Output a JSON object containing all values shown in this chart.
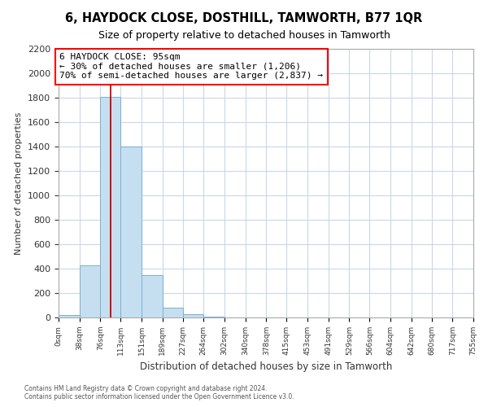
{
  "title": "6, HAYDOCK CLOSE, DOSTHILL, TAMWORTH, B77 1QR",
  "subtitle": "Size of property relative to detached houses in Tamworth",
  "xlabel": "Distribution of detached houses by size in Tamworth",
  "ylabel": "Number of detached properties",
  "bar_edges": [
    0,
    38,
    76,
    113,
    151,
    189,
    227,
    264,
    302,
    340,
    378,
    415,
    453,
    491,
    529,
    566,
    604,
    642,
    680,
    717,
    755
  ],
  "bar_heights": [
    20,
    430,
    1810,
    1400,
    350,
    80,
    25,
    5,
    0,
    0,
    0,
    0,
    0,
    0,
    0,
    0,
    0,
    0,
    0,
    0
  ],
  "bar_color": "#c5dff0",
  "bar_edgecolor": "#7aafd4",
  "property_line_x": 95,
  "property_line_color": "#cc0000",
  "ylim": [
    0,
    2200
  ],
  "yticks": [
    0,
    200,
    400,
    600,
    800,
    1000,
    1200,
    1400,
    1600,
    1800,
    2000,
    2200
  ],
  "annotation_title": "6 HAYDOCK CLOSE: 95sqm",
  "annotation_line1": "← 30% of detached houses are smaller (1,206)",
  "annotation_line2": "70% of semi-detached houses are larger (2,837) →",
  "footnote1": "Contains HM Land Registry data © Crown copyright and database right 2024.",
  "footnote2": "Contains public sector information licensed under the Open Government Licence v3.0.",
  "grid_color": "#c8d8e8",
  "background_color": "#ffffff",
  "tick_labels": [
    "0sqm",
    "38sqm",
    "76sqm",
    "113sqm",
    "151sqm",
    "189sqm",
    "227sqm",
    "264sqm",
    "302sqm",
    "340sqm",
    "378sqm",
    "415sqm",
    "453sqm",
    "491sqm",
    "529sqm",
    "566sqm",
    "604sqm",
    "642sqm",
    "680sqm",
    "717sqm",
    "755sqm"
  ]
}
